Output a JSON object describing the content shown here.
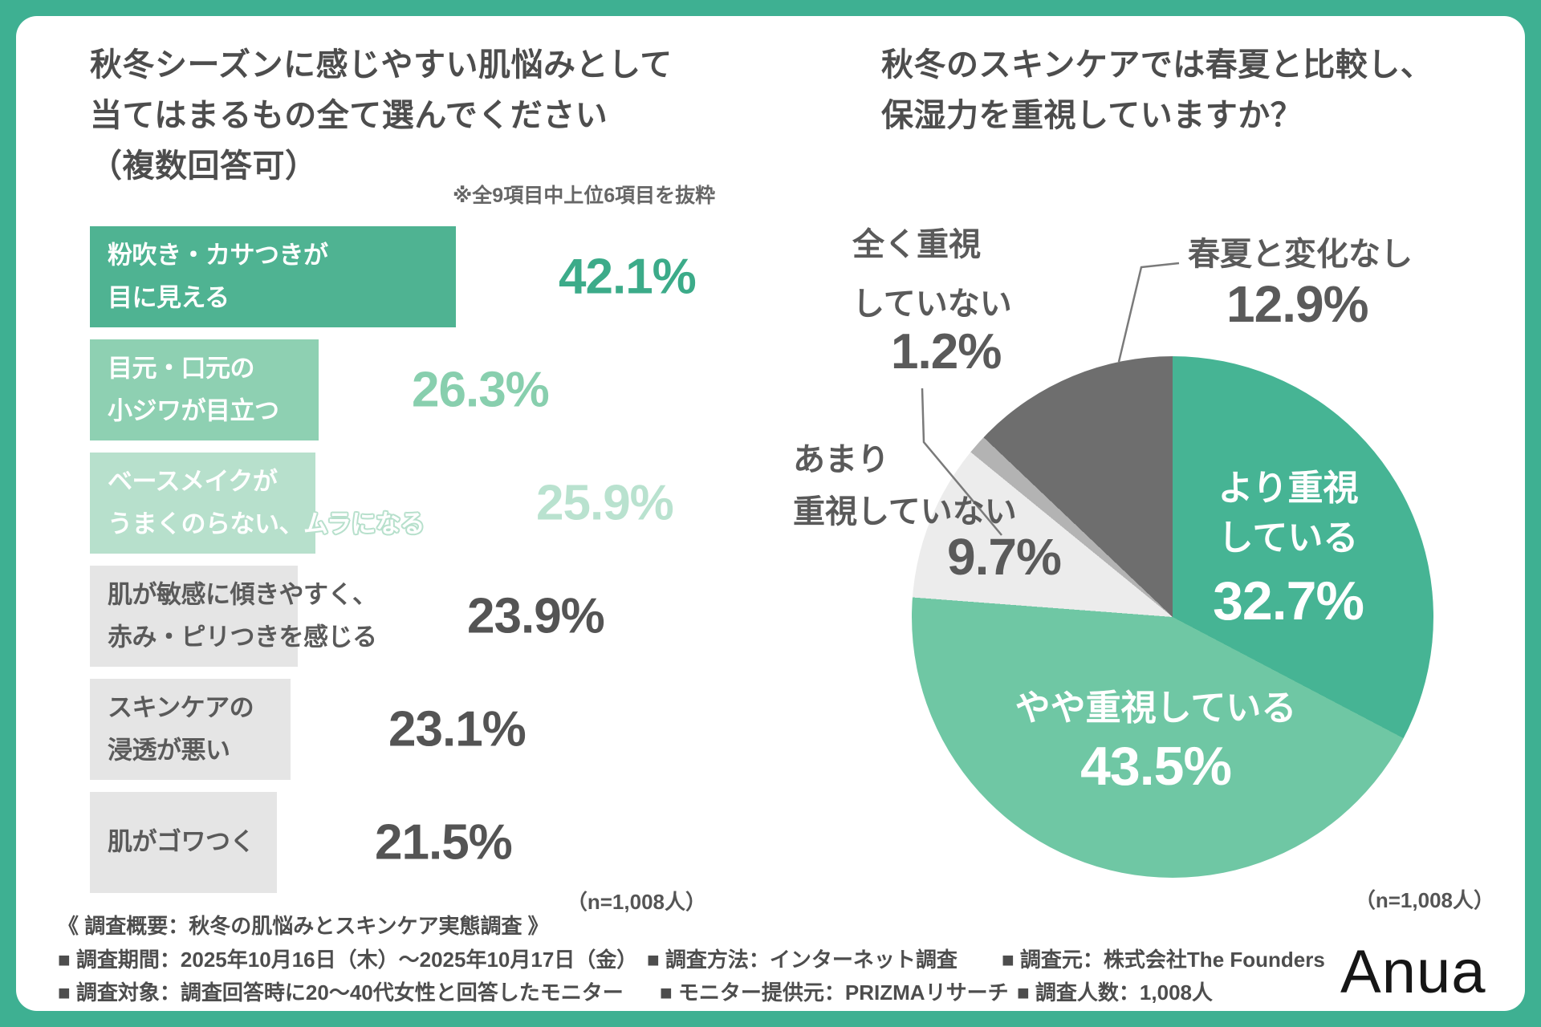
{
  "theme": {
    "frame_green": "#3eb092",
    "card_bg": "#ffffff",
    "text_dark": "#4d4d4d",
    "leader_gray": "#7a7a7a"
  },
  "left_chart": {
    "title_lines": [
      "秋冬シーズンに感じやすい肌悩みとして",
      "当てはまるもの全て選んでください",
      "（複数回答可）"
    ],
    "bars": [
      {
        "lines": [
          "粉吹き・カサつきが",
          "目に見える"
        ]
      },
      {
        "lines": [
          "目元・口元の",
          "小ジワが目立つ"
        ]
      },
      {
        "lines": [
          "ベースメイクが",
          "うまくのらない、ムラになる"
        ]
      },
      {
        "lines": [
          "肌が敏感に傾きやすく、",
          "赤み・ピリつきを感じる"
        ]
      },
      {
        "lines": [
          "スキンケアの",
          "浸透が悪い"
        ]
      },
      {
        "lines": [
          "肌がゴワつく"
        ]
      }
    ]
  },
  "right_chart": {
    "title_lines": [
      "秋冬のスキンケアでは春夏と比較し、",
      "保湿力を重視していますか？"
    ],
    "callouts": {
      "none_lines": [
        "全く重視",
        "していない"
      ],
      "no_change_line": "春夏と変化なし",
      "not_much_lines": [
        "あまり",
        "重視していない"
      ],
      "more_lines": [
        "より重視",
        "している"
      ],
      "somewhat_line": "やや重視している"
    }
  },
  "sample_left": "（n=1,008人）",
  "sample_right": "（n=1,008人）",
  "footer": {
    "header": "《 調査概要：秋冬の肌悩みとスキンケア実態調査 》",
    "col1": [
      "■ 調査期間：2025年10月16日（木）〜2025年10月17日（金）",
      "■ 調査対象：調査回答時に20〜40代女性と回答したモニター"
    ],
    "col2": [
      "■ 調査方法：インターネット調査",
      "■ モニター提供元：PRIZMAリサーチ"
    ],
    "col3": [
      "■ 調査元：株式会社The Founders",
      "■ 調査人数：1,008人"
    ]
  },
  "logo": {
    "text": "Anua"
  },
  "chart_data": [
    {
      "type": "bar",
      "orientation": "horizontal",
      "title": "秋冬シーズンに感じやすい肌悩みとして当てはまるもの全て選んでください（複数回答可）",
      "note": "※全9項目中上位6項目を抜粋",
      "sample": "（n=1,008人）",
      "categories": [
        "粉吹き・カサつきが目に見える",
        "目元・口元の小ジワが目立つ",
        "ベースメイクがうまくのらない、ムラになる",
        "肌が敏感に傾きやすく、赤み・ピリつきを感じる",
        "スキンケアの浸透が悪い",
        "肌がゴワつく"
      ],
      "values": [
        42.1,
        26.3,
        25.9,
        23.9,
        23.1,
        21.5
      ],
      "unit": "%",
      "xlim": [
        0,
        45
      ],
      "bar_colors": [
        "#4fb392",
        "#8ed0b2",
        "#b7e0cc",
        "#e5e5e5",
        "#e5e5e5",
        "#e5e5e5"
      ],
      "label_colors": [
        "#ffffff",
        "#ffffff",
        "#ffffff",
        "#5a5a5a",
        "#5a5a5a",
        "#5a5a5a"
      ],
      "value_colors": [
        "#3cab89",
        "#88cfae",
        "#b9e2cf",
        "#545454",
        "#545454",
        "#545454"
      ]
    },
    {
      "type": "pie",
      "title": "秋冬のスキンケアでは春夏と比較し、保湿力を重視していますか？",
      "sample": "（n=1,008人）",
      "labels": [
        "より重視している",
        "やや重視している",
        "あまり重視していない",
        "全く重視していない",
        "春夏と変化なし"
      ],
      "values": [
        32.7,
        43.5,
        9.7,
        1.2,
        12.9
      ],
      "colors": [
        "#46b494",
        "#6fc7a4",
        "#ececec",
        "#b3b3b3",
        "#6e6e6e"
      ],
      "start_angle": "top",
      "direction": "clockwise"
    }
  ]
}
